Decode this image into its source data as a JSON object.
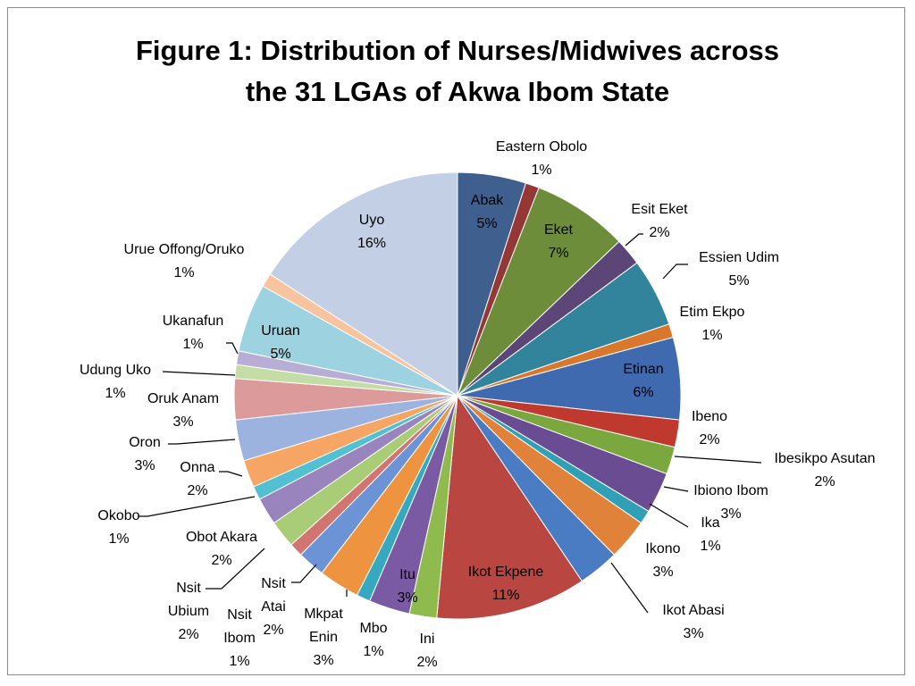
{
  "chart_data": {
    "type": "pie",
    "title_lines": [
      "Figure 1: Distribution of Nurses/Midwives across",
      "the 31 LGAs of Akwa Ibom State"
    ],
    "slices": [
      {
        "name": "Abak",
        "label": "5%",
        "value": 5,
        "color": "#3f5f8e"
      },
      {
        "name": "Eastern Obolo",
        "label": "1%",
        "value": 1,
        "color": "#953735"
      },
      {
        "name": "Eket",
        "label": "7%",
        "value": 7,
        "color": "#6e8d3a"
      },
      {
        "name": "Esit Eket",
        "label": "2%",
        "value": 2,
        "color": "#5c4577"
      },
      {
        "name": "Essien Udim",
        "label": "5%",
        "value": 5,
        "color": "#31849b"
      },
      {
        "name": "Etim Ekpo",
        "label": "1%",
        "value": 1,
        "color": "#d9772c"
      },
      {
        "name": "Etinan",
        "label": "6%",
        "value": 6,
        "color": "#3f6ab0"
      },
      {
        "name": "Ibeno",
        "label": "2%",
        "value": 2,
        "color": "#c0392f"
      },
      {
        "name": "Ibesikpo Asutan",
        "label": "2%",
        "value": 2,
        "color": "#7aa83f"
      },
      {
        "name": "Ibiono Ibom",
        "label": "3%",
        "value": 3,
        "color": "#6a4c93"
      },
      {
        "name": "Ika",
        "label": "1%",
        "value": 1,
        "color": "#2fa0b5"
      },
      {
        "name": "Ikono",
        "label": "3%",
        "value": 3,
        "color": "#e0823a"
      },
      {
        "name": "Ikot Abasi",
        "label": "3%",
        "value": 3,
        "color": "#4a7cc3"
      },
      {
        "name": "Ikot Ekpene",
        "label": "11%",
        "value": 11,
        "color": "#b94641"
      },
      {
        "name": "Ini",
        "label": "2%",
        "value": 2,
        "color": "#8fba4e"
      },
      {
        "name": "Itu",
        "label": "3%",
        "value": 3,
        "color": "#7a5ba3"
      },
      {
        "name": "Mbo",
        "label": "1%",
        "value": 1,
        "color": "#36a9c0"
      },
      {
        "name": "Mkpat Enin",
        "label": "3%",
        "value": 3,
        "color": "#ee9440"
      },
      {
        "name": "Nsit Atai",
        "label": "2%",
        "value": 2,
        "color": "#6b93d6"
      },
      {
        "name": "Nsit Ibom",
        "label": "1%",
        "value": 1,
        "color": "#d27470"
      },
      {
        "name": "Nsit Ubium",
        "label": "2%",
        "value": 2,
        "color": "#a9cc76"
      },
      {
        "name": "Obot Akara",
        "label": "2%",
        "value": 2,
        "color": "#9a84bd"
      },
      {
        "name": "Okobo",
        "label": "1%",
        "value": 1,
        "color": "#52bfd2"
      },
      {
        "name": "Onna",
        "label": "2%",
        "value": 2,
        "color": "#f6a565"
      },
      {
        "name": "Oron",
        "label": "3%",
        "value": 3,
        "color": "#9bb3de"
      },
      {
        "name": "Oruk Anam",
        "label": "3%",
        "value": 3,
        "color": "#dc9b9a"
      },
      {
        "name": "Udung Uko",
        "label": "1%",
        "value": 1,
        "color": "#c4dca5"
      },
      {
        "name": "Ukanafun",
        "label": "1%",
        "value": 1,
        "color": "#b8aed5"
      },
      {
        "name": "Uruan",
        "label": "5%",
        "value": 5,
        "color": "#9dd3e1"
      },
      {
        "name": "Urue Offong/Oruko",
        "label": "1%",
        "value": 1,
        "color": "#f8c49f"
      },
      {
        "name": "Uyo",
        "label": "16%",
        "value": 16,
        "color": "#c3cfe4"
      }
    ],
    "label_lines": {
      "Abak": [
        "Abak",
        "5%"
      ],
      "Eastern Obolo": [
        "Eastern Obolo",
        "1%"
      ],
      "Eket": [
        "Eket",
        "7%"
      ],
      "Esit Eket": [
        "Esit Eket",
        "2%"
      ],
      "Essien Udim": [
        "Essien Udim",
        "5%"
      ],
      "Etim Ekpo": [
        "Etim Ekpo",
        "1%"
      ],
      "Etinan": [
        "Etinan",
        "6%"
      ],
      "Ibeno": [
        "Ibeno",
        "2%"
      ],
      "Ibesikpo Asutan": [
        "Ibesikpo Asutan",
        "2%"
      ],
      "Ibiono Ibom": [
        "Ibiono Ibom",
        "3%"
      ],
      "Ika": [
        "Ika",
        "1%"
      ],
      "Ikono": [
        "Ikono",
        "3%"
      ],
      "Ikot Abasi": [
        "Ikot Abasi",
        "3%"
      ],
      "Ikot Ekpene": [
        "Ikot Ekpene",
        "11%"
      ],
      "Ini": [
        "Ini",
        "2%"
      ],
      "Itu": [
        "Itu",
        "3%"
      ],
      "Mbo": [
        "Mbo",
        "1%"
      ],
      "Mkpat Enin": [
        "Mkpat",
        "Enin",
        "3%"
      ],
      "Nsit Atai": [
        "Nsit",
        "Atai",
        "2%"
      ],
      "Nsit Ibom": [
        "Nsit",
        "Ibom",
        "1%"
      ],
      "Nsit Ubium": [
        "Nsit",
        "Ubium",
        "2%"
      ],
      "Obot Akara": [
        "Obot Akara",
        "2%"
      ],
      "Okobo": [
        "Okobo",
        "1%"
      ],
      "Onna": [
        "Onna",
        "2%"
      ],
      "Oron": [
        "Oron",
        "3%"
      ],
      "Oruk Anam": [
        "Oruk Anam",
        "3%"
      ],
      "Udung Uko": [
        "Udung Uko",
        "1%"
      ],
      "Ukanafun": [
        "Ukanafun",
        "1%"
      ],
      "Uruan": [
        "Uruan",
        "5%"
      ],
      "Urue Offong/Oruko": [
        "Urue Offong/Oruko",
        "1%"
      ],
      "Uyo": [
        "Uyo",
        "16%"
      ]
    },
    "start_angle": "12 o'clock",
    "direction": "clockwise",
    "legend": "none (data labels on chart)"
  }
}
